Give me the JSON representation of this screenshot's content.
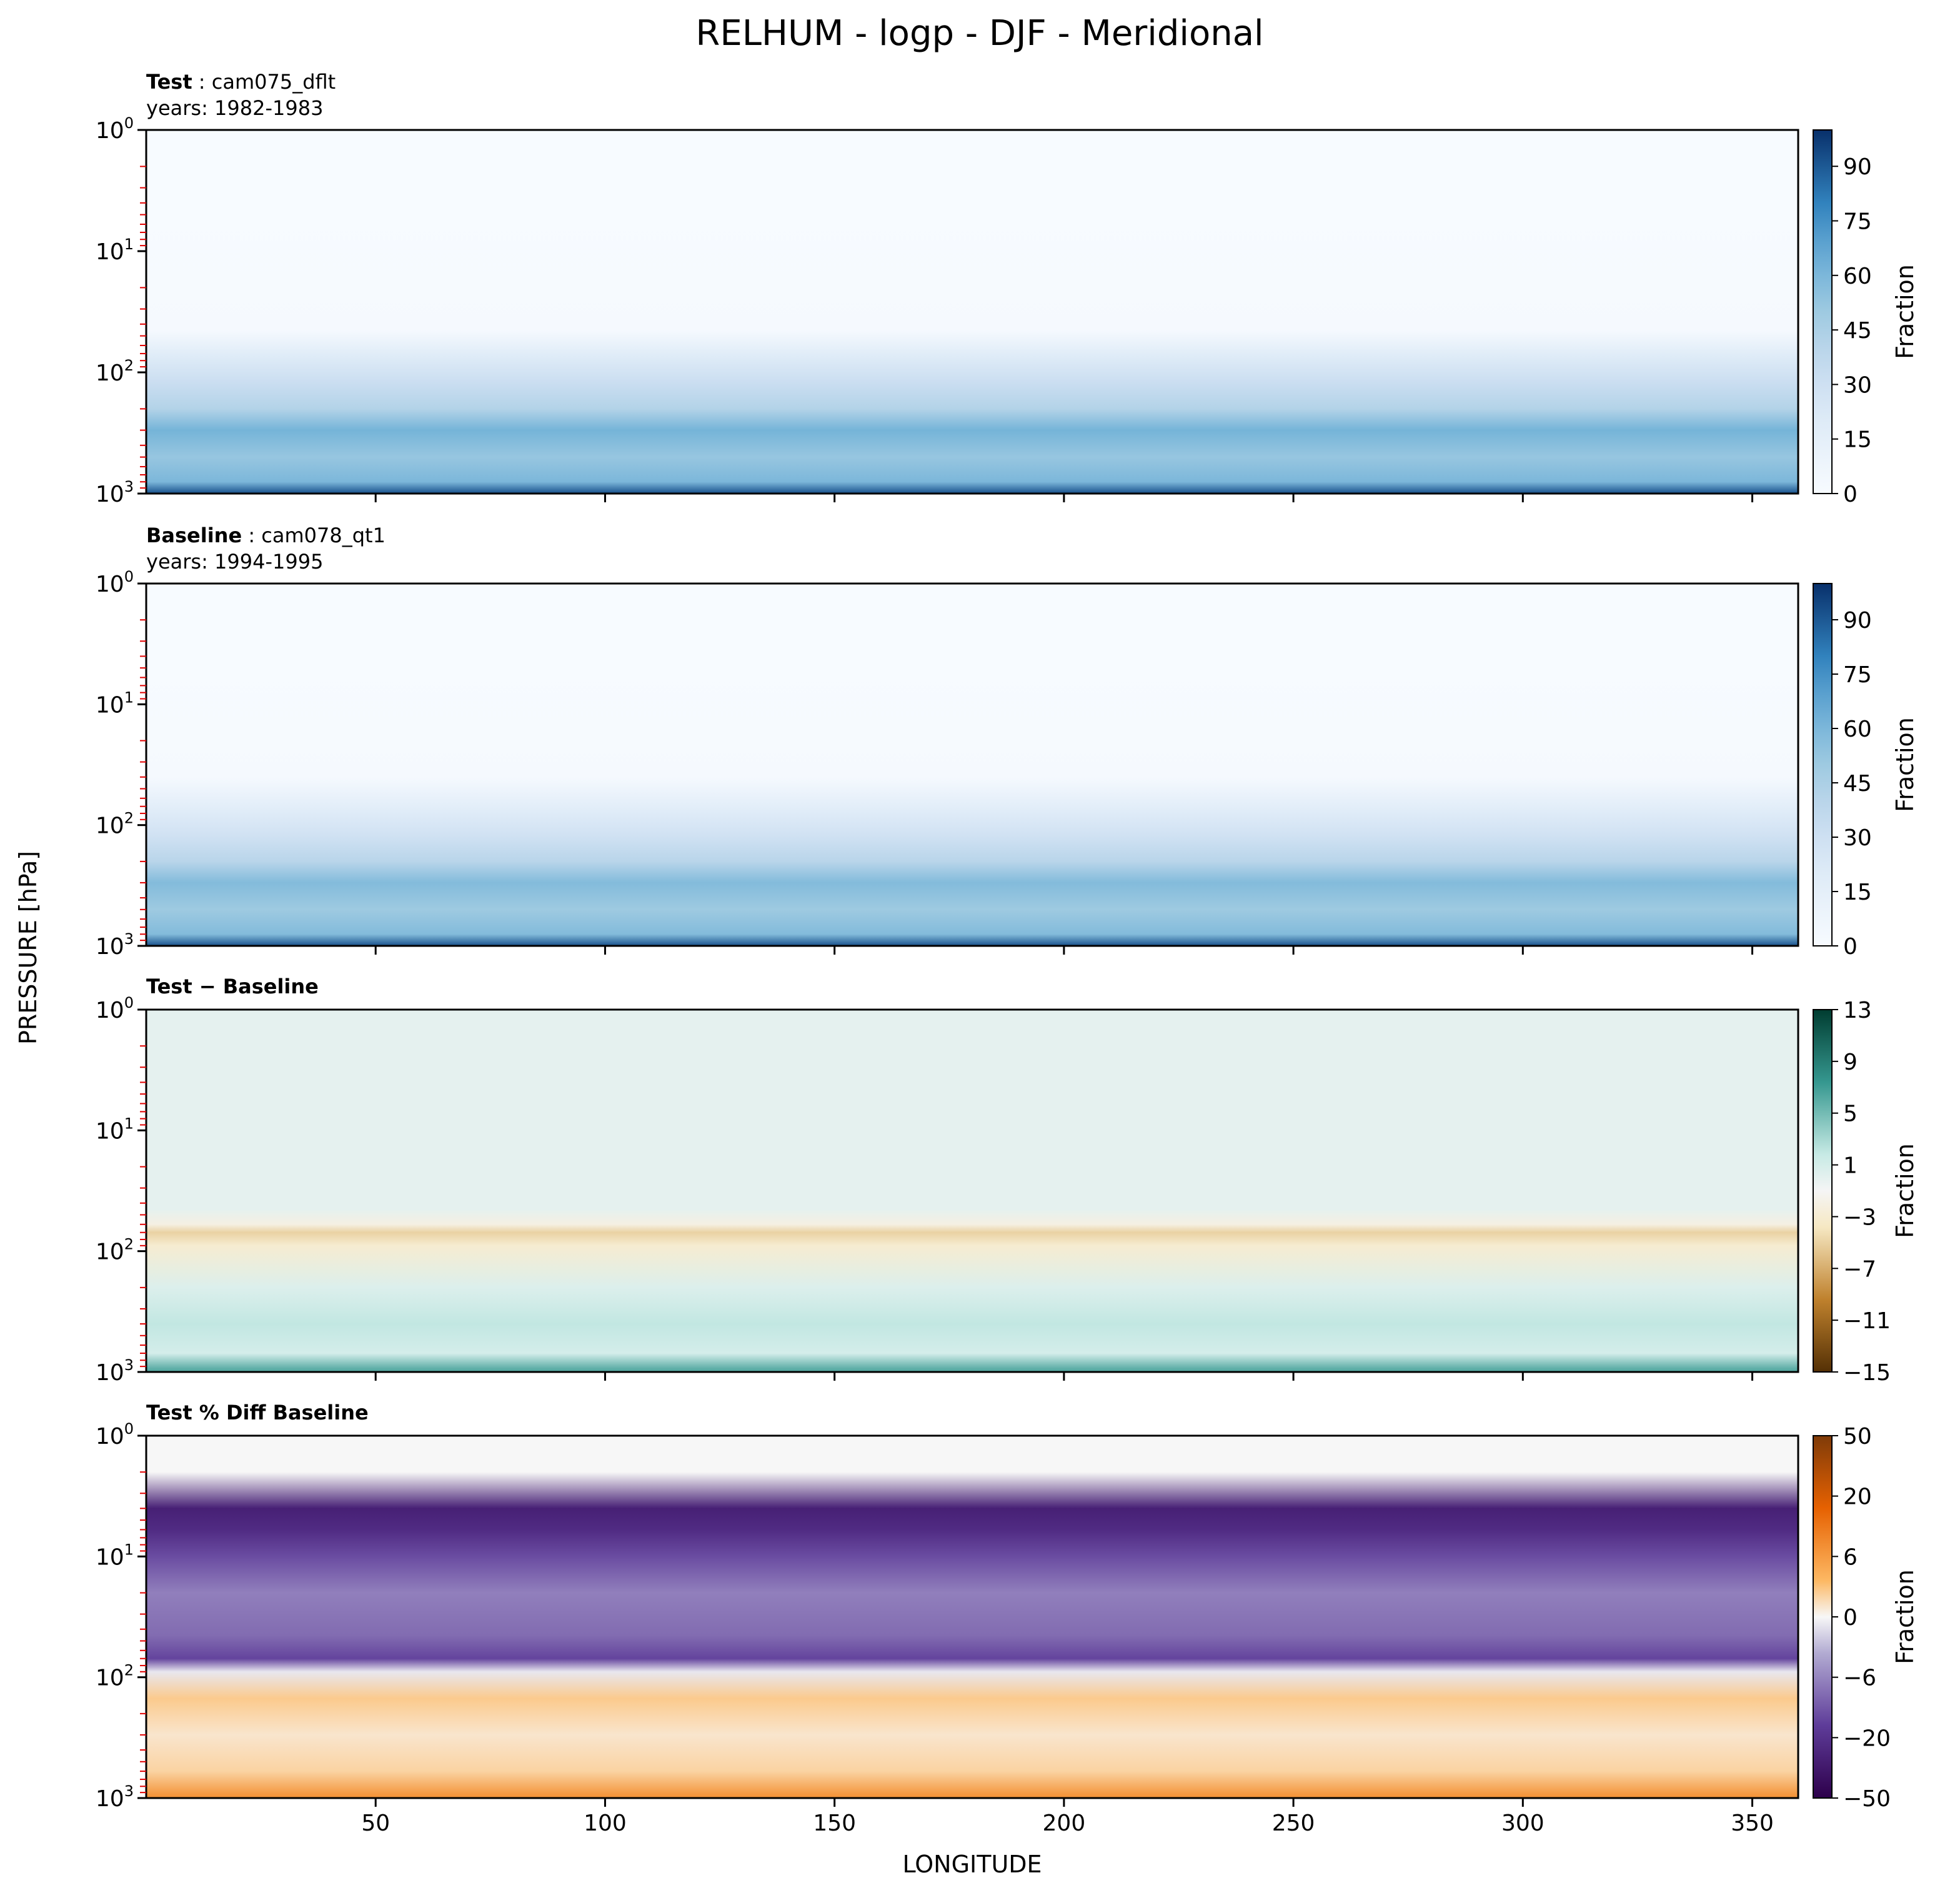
{
  "chart_data": {
    "type": "heatmap",
    "title": "RELHUM - logp - DJF - Meridional",
    "xlabel": "LONGITUDE",
    "ylabel": "PRESSURE [hPa]",
    "x_ticks": [
      50,
      100,
      150,
      200,
      250,
      300,
      350
    ],
    "xlim": [
      0,
      360
    ],
    "y_scale": "log",
    "y_ticks": [
      {
        "base": "10",
        "exp": "0",
        "value": 1
      },
      {
        "base": "10",
        "exp": "1",
        "value": 10
      },
      {
        "base": "10",
        "exp": "2",
        "value": 100
      },
      {
        "base": "10",
        "exp": "3",
        "value": 1000
      }
    ],
    "ylim": [
      1000,
      1
    ],
    "panels": [
      {
        "id": "test",
        "header_bold": "Test",
        "header_sep": " : ",
        "header_case": "cam075_dflt",
        "years": "years: 1982-1983",
        "colorbar_label": "Fraction",
        "colorbar_ticks": [
          "0",
          "15",
          "30",
          "45",
          "60",
          "75",
          "90"
        ],
        "colorbar_range": [
          0,
          100
        ],
        "colormap": "Blues",
        "bands": [
          {
            "p": 5,
            "v": 0
          },
          {
            "p": 45,
            "v": 2
          },
          {
            "p": 70,
            "v": 18
          },
          {
            "p": 120,
            "v": 32
          },
          {
            "p": 200,
            "v": 42
          },
          {
            "p": 300,
            "v": 62
          },
          {
            "p": 500,
            "v": 52
          },
          {
            "p": 800,
            "v": 60
          },
          {
            "p": 1000,
            "v": 92
          }
        ]
      },
      {
        "id": "baseline",
        "header_bold": "Baseline",
        "header_sep": " : ",
        "header_case": "cam078_qt1",
        "years": "years: 1994-1995",
        "colorbar_label": "Fraction",
        "colorbar_ticks": [
          "0",
          "15",
          "30",
          "45",
          "60",
          "75",
          "90"
        ],
        "colorbar_range": [
          0,
          100
        ],
        "colormap": "Blues",
        "bands": [
          {
            "p": 5,
            "v": 0
          },
          {
            "p": 40,
            "v": 2
          },
          {
            "p": 70,
            "v": 16
          },
          {
            "p": 120,
            "v": 28
          },
          {
            "p": 200,
            "v": 40
          },
          {
            "p": 300,
            "v": 58
          },
          {
            "p": 500,
            "v": 50
          },
          {
            "p": 800,
            "v": 58
          },
          {
            "p": 1000,
            "v": 92
          }
        ]
      },
      {
        "id": "diff",
        "header_bold": "Test − Baseline",
        "colorbar_label": "Fraction",
        "colorbar_ticks": [
          "−15",
          "−11",
          "−7",
          "−3",
          "1",
          "5",
          "9",
          "13"
        ],
        "colorbar_range": [
          -15,
          13
        ],
        "colormap": "BrBG",
        "bands": [
          {
            "p": 5,
            "v": 0
          },
          {
            "p": 45,
            "v": 0
          },
          {
            "p": 60,
            "v": -2
          },
          {
            "p": 70,
            "v": -5
          },
          {
            "p": 90,
            "v": -3
          },
          {
            "p": 200,
            "v": 0.5
          },
          {
            "p": 400,
            "v": 2
          },
          {
            "p": 700,
            "v": 1
          },
          {
            "p": 950,
            "v": 6
          }
        ]
      },
      {
        "id": "pctdiff",
        "header_bold": "Test % Diff Baseline",
        "colorbar_label": "Fraction",
        "colorbar_ticks": [
          "−50",
          "−20",
          "−6",
          "0",
          "6",
          "20",
          "50"
        ],
        "colorbar_range": [
          -70,
          70
        ],
        "colormap": "PuOr",
        "bands": [
          {
            "p": 2,
            "v": 0
          },
          {
            "p": 4,
            "v": -55
          },
          {
            "p": 6,
            "v": -50
          },
          {
            "p": 10,
            "v": -38
          },
          {
            "p": 20,
            "v": -25
          },
          {
            "p": 45,
            "v": -30
          },
          {
            "p": 70,
            "v": -40
          },
          {
            "p": 90,
            "v": -3
          },
          {
            "p": 150,
            "v": 10
          },
          {
            "p": 300,
            "v": 4
          },
          {
            "p": 600,
            "v": 8
          },
          {
            "p": 950,
            "v": 25
          }
        ]
      }
    ]
  }
}
